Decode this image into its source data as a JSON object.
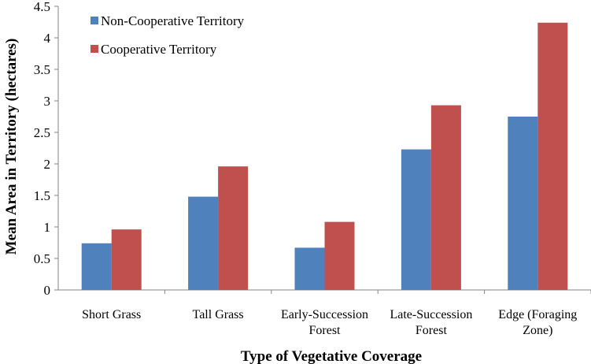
{
  "chart_data": {
    "type": "bar",
    "title": "",
    "xlabel": "Type of Vegetative Coverage",
    "ylabel": "Mean Area in Territory (hectares)",
    "ylim": [
      0,
      4.5
    ],
    "yticks": [
      "0",
      "0.5",
      "1",
      "1.5",
      "2",
      "2.5",
      "3",
      "3.5",
      "4",
      "4.5"
    ],
    "grid": false,
    "legend_position": "top-left",
    "categories": [
      [
        "Short Grass"
      ],
      [
        "Tall Grass"
      ],
      [
        "Early-Succession",
        "Forest"
      ],
      [
        "Late-Succession",
        "Forest"
      ],
      [
        "Edge (Foraging",
        "Zone)"
      ]
    ],
    "series": [
      {
        "name": "Non-Cooperative Territory",
        "color": "#4f81bd",
        "values": [
          0.74,
          1.48,
          0.67,
          2.23,
          2.75
        ]
      },
      {
        "name": "Cooperative Territory",
        "color": "#c0504d",
        "values": [
          0.96,
          1.96,
          1.08,
          2.93,
          4.24
        ]
      }
    ]
  }
}
